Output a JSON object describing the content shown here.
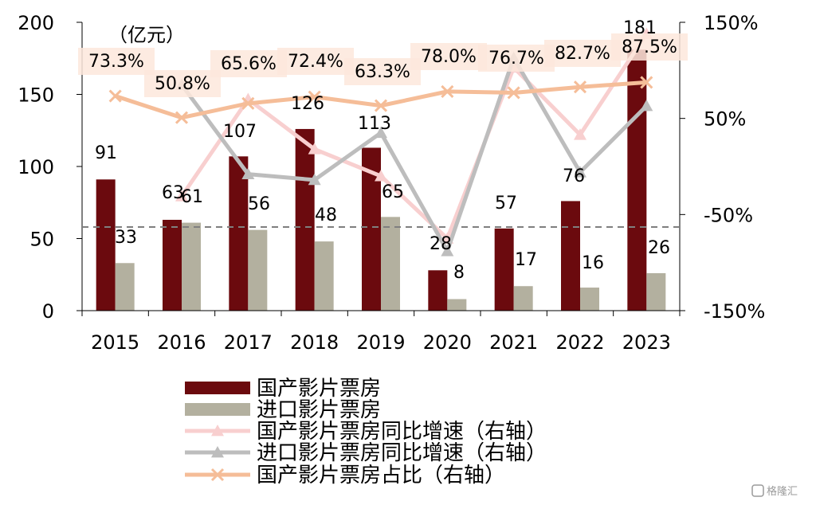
{
  "chart_data": {
    "type": "bar",
    "unit_label": "（亿元）",
    "categories": [
      "2015",
      "2016",
      "2017",
      "2018",
      "2019",
      "2020",
      "2021",
      "2022",
      "2023"
    ],
    "series": [
      {
        "name": "国产影片票房",
        "type": "bar",
        "axis": "left",
        "color": "#6b0a0e",
        "values": [
          91,
          63,
          107,
          126,
          113,
          28,
          57,
          76,
          181
        ],
        "labels": [
          "91",
          "63",
          "107",
          "126",
          "113",
          "28",
          "57",
          "76",
          "181"
        ]
      },
      {
        "name": "进口影片票房",
        "type": "bar",
        "axis": "left",
        "color": "#b3b09f",
        "values": [
          33,
          61,
          56,
          48,
          65,
          8,
          17,
          16,
          26
        ],
        "labels": [
          "33",
          "61",
          "56",
          "48",
          "65",
          "8",
          "17",
          "16",
          "26"
        ]
      },
      {
        "name": "国产影片票房同比增速（右轴）",
        "type": "line",
        "axis": "right",
        "color": "#f8cfcf",
        "marker": "triangle",
        "values": [
          null,
          -31,
          70,
          18,
          -10,
          -75,
          103,
          33,
          138
        ]
      },
      {
        "name": "进口影片票房同比增速（右轴）",
        "type": "line",
        "axis": "right",
        "color": "#bdbdbd",
        "marker": "triangle",
        "values": [
          null,
          85,
          -8,
          -14,
          35,
          -88,
          113,
          -6,
          63
        ]
      },
      {
        "name": "国产影片票房占比（右轴）",
        "type": "line",
        "axis": "right",
        "color": "#f5bd98",
        "marker": "x",
        "values": [
          73.3,
          50.8,
          65.6,
          72.4,
          63.3,
          78.0,
          76.7,
          82.7,
          87.5
        ],
        "labels": [
          "73.3%",
          "50.8%",
          "65.6%",
          "72.4%",
          "63.3%",
          "78.0%",
          "76.7%",
          "82.7%",
          "87.5%"
        ]
      }
    ],
    "left_axis": {
      "ylim": [
        0,
        200
      ],
      "ticks": [
        0,
        50,
        100,
        150,
        200
      ],
      "tick_labels": [
        "0",
        "50",
        "100",
        "150",
        "200"
      ]
    },
    "right_axis": {
      "ylim": [
        -150,
        150
      ],
      "ticks": [
        -150,
        -50,
        50,
        150
      ],
      "tick_labels": [
        "-150%",
        "-50%",
        "50%",
        "150%"
      ]
    },
    "reference_line": {
      "axis": "right",
      "value": -63,
      "style": "dashed"
    },
    "legend_position": "bottom"
  },
  "watermark": "格隆汇"
}
